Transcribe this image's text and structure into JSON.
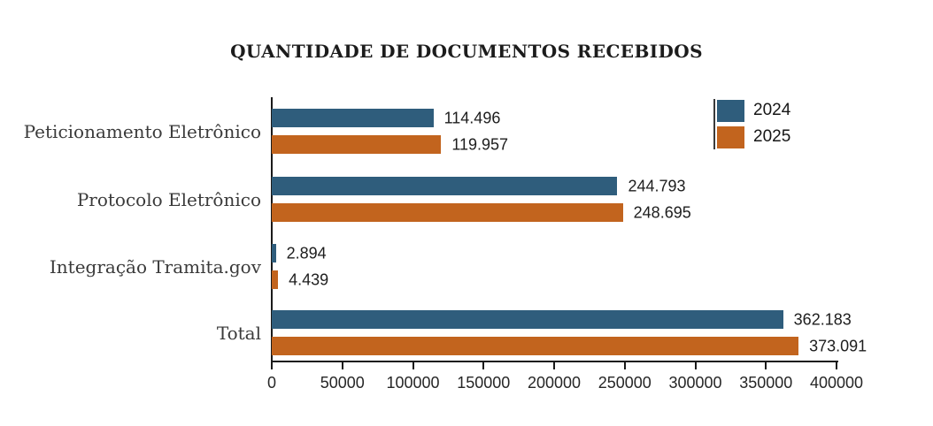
{
  "chart_data": {
    "type": "bar",
    "orientation": "horizontal",
    "title": "QUANTIDADE DE DOCUMENTOS RECEBIDOS",
    "categories": [
      "Peticionamento Eletrônico",
      "Protocolo Eletrônico",
      "Integração Tramita.gov",
      "Total"
    ],
    "series": [
      {
        "name": "2024",
        "color": "#2F5D7C",
        "values": [
          114496,
          244793,
          2894,
          362183
        ],
        "value_labels": [
          "114.496",
          "244.793",
          "2.894",
          "362.183"
        ]
      },
      {
        "name": "2025",
        "color": "#C2641E",
        "values": [
          119957,
          248695,
          4439,
          373091
        ],
        "value_labels": [
          "119.957",
          "248.695",
          "4.439",
          "373.091"
        ]
      }
    ],
    "x_axis": {
      "min": 0,
      "max": 400000,
      "tick_step": 50000,
      "tick_labels": [
        "0",
        "50000",
        "100000",
        "150000",
        "200000",
        "250000",
        "300000",
        "350000",
        "400000"
      ]
    },
    "legend": {
      "position": "top-right"
    },
    "grid": false,
    "axis_color": "#1a1a1a",
    "background": "#ffffff"
  }
}
